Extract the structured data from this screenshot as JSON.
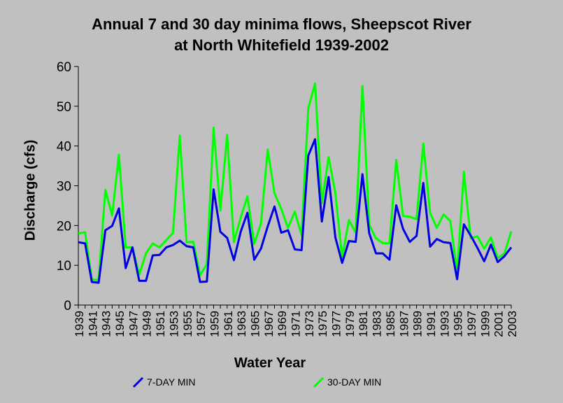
{
  "chart_data": {
    "type": "line",
    "title_line1": "Annual 7 and 30 day minima flows, Sheepscot River",
    "title_line2": "at North Whitefield 1939-2002",
    "xlabel": "Water Year",
    "ylabel": "Discharge (cfs)",
    "ylim": [
      0,
      60
    ],
    "yticks": [
      0,
      10,
      20,
      30,
      40,
      50,
      60
    ],
    "xlim": [
      1939,
      2003
    ],
    "xticks": [
      1939,
      1941,
      1943,
      1945,
      1947,
      1949,
      1951,
      1953,
      1955,
      1957,
      1959,
      1961,
      1963,
      1965,
      1967,
      1969,
      1971,
      1973,
      1975,
      1977,
      1979,
      1981,
      1983,
      1985,
      1987,
      1989,
      1991,
      1993,
      1995,
      1997,
      1999,
      2001,
      2003
    ],
    "grid": false,
    "legend_position": "bottom",
    "x": [
      1939,
      1940,
      1941,
      1942,
      1943,
      1944,
      1945,
      1946,
      1947,
      1948,
      1949,
      1950,
      1951,
      1952,
      1953,
      1954,
      1955,
      1956,
      1957,
      1958,
      1959,
      1960,
      1961,
      1962,
      1963,
      1964,
      1965,
      1966,
      1967,
      1968,
      1969,
      1970,
      1971,
      1972,
      1973,
      1974,
      1975,
      1976,
      1977,
      1978,
      1979,
      1980,
      1981,
      1982,
      1983,
      1984,
      1985,
      1986,
      1987,
      1988,
      1989,
      1990,
      1991,
      1992,
      1993,
      1994,
      1995,
      1996,
      1997,
      1998,
      1999,
      2000,
      2001,
      2002,
      2003
    ],
    "series": [
      {
        "name": "7-DAY MIN",
        "color": "#0000e0",
        "values": [
          15.8,
          15.5,
          5.8,
          5.6,
          18.8,
          19.9,
          24.3,
          9.3,
          14.5,
          6.1,
          6.1,
          12.5,
          12.6,
          14.5,
          15.1,
          16.2,
          14.8,
          14.5,
          5.8,
          5.9,
          29.1,
          18.4,
          16.9,
          11.3,
          18.4,
          23.2,
          11.4,
          14.2,
          19.8,
          24.8,
          18.2,
          18.8,
          14.0,
          13.8,
          37.6,
          41.7,
          21.0,
          32.2,
          17.0,
          10.6,
          16.1,
          15.9,
          32.9,
          18.1,
          13.0,
          13.0,
          11.4,
          25.1,
          19.2,
          15.9,
          17.4,
          30.7,
          14.7,
          16.6,
          15.8,
          15.6,
          6.5,
          20.3,
          17.5,
          14.4,
          11.0,
          15.2,
          10.8,
          12.3,
          14.5
        ]
      },
      {
        "name": "30-DAY MIN",
        "color": "#00ff00",
        "values": [
          18.0,
          18.3,
          6.4,
          6.3,
          29.0,
          22.5,
          37.8,
          14.5,
          14.5,
          7.6,
          13.0,
          15.5,
          14.5,
          16.3,
          18.2,
          42.6,
          15.8,
          15.9,
          7.5,
          10.3,
          44.6,
          23.8,
          42.8,
          15.8,
          22.0,
          27.3,
          15.4,
          20.5,
          39.1,
          28.1,
          24.2,
          19.4,
          23.5,
          17.6,
          49.5,
          55.7,
          25.6,
          37.2,
          28.2,
          11.8,
          21.4,
          18.2,
          55.1,
          20.2,
          16.8,
          15.6,
          15.5,
          36.5,
          22.4,
          22.2,
          21.6,
          40.6,
          23.2,
          19.4,
          22.8,
          21.1,
          8.3,
          33.5,
          16.8,
          17.3,
          14.2,
          17.0,
          11.8,
          13.0,
          18.5
        ]
      }
    ]
  },
  "legend": {
    "item_7day": "7-DAY MIN",
    "item_30day": "30-DAY MIN"
  }
}
